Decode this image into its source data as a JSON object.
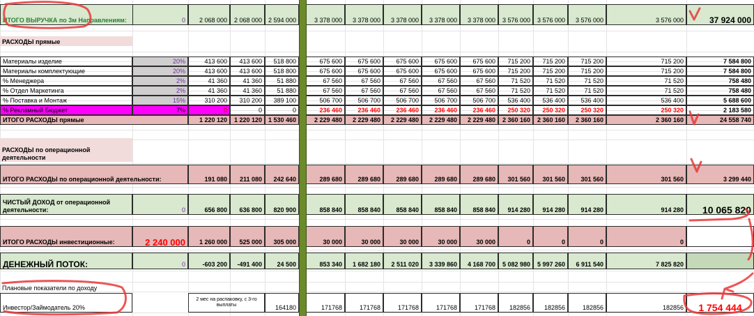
{
  "columns": 16,
  "revenue": {
    "label": "ИТОГО ВЫРУЧКА по 3м Направлениям:",
    "values": [
      "0",
      "2 068 000",
      "2 068 000",
      "2 594 000",
      "3 378 000",
      "3 378 000",
      "3 378 000",
      "3 378 000",
      "3 378 000",
      "3 576 000",
      "3 576 000",
      "3 576 000",
      "3 576 000"
    ],
    "total": "37 924 000"
  },
  "direct_header": "РАСХОДЫ прямые",
  "direct_rows": [
    {
      "label": "Материалы изделие",
      "pct": "20%",
      "values": [
        "413 600",
        "413 600",
        "518 800",
        "675 600",
        "675 600",
        "675 600",
        "675 600",
        "675 600",
        "715 200",
        "715 200",
        "715 200",
        "715 200"
      ],
      "total": "7 584 800"
    },
    {
      "label": "Материалы комплектующие",
      "pct": "20%",
      "values": [
        "413 600",
        "413 600",
        "518 800",
        "675 600",
        "675 600",
        "675 600",
        "675 600",
        "675 600",
        "715 200",
        "715 200",
        "715 200",
        "715 200"
      ],
      "total": "7 584 800"
    },
    {
      "label": "% Менеджера",
      "pct": "2%",
      "values": [
        "41 360",
        "41 360",
        "51 880",
        "67 560",
        "67 560",
        "67 560",
        "67 560",
        "67 560",
        "71 520",
        "71 520",
        "71 520",
        "71 520"
      ],
      "total": "758 480"
    },
    {
      "label": "% Отдел Маркетинга",
      "pct": "2%",
      "values": [
        "41 360",
        "41 360",
        "51 880",
        "67 560",
        "67 560",
        "67 560",
        "67 560",
        "67 560",
        "71 520",
        "71 520",
        "71 520",
        "71 520"
      ],
      "total": "758 480"
    },
    {
      "label": "% Поставка и Монтаж",
      "pct": "15%",
      "values": [
        "310 200",
        "310 200",
        "389 100",
        "506 700",
        "506 700",
        "506 700",
        "506 700",
        "506 700",
        "536 400",
        "536 400",
        "536 400",
        "536 400"
      ],
      "total": "5 688 600"
    },
    {
      "label": "% Рекламный Бюджет",
      "pct": "7%",
      "pre": "0",
      "values": [
        "0",
        "0",
        "236 460",
        "236 460",
        "236 460",
        "236 460",
        "236 460",
        "250 320",
        "250 320",
        "250 320",
        "250 320"
      ],
      "total": "2 183 580"
    }
  ],
  "direct_total": {
    "label": "ИТОГО РАСХОДЫ прямые",
    "values": [
      "1 220 120",
      "1 220 120",
      "1 530 460",
      "2 229 480",
      "2 229 480",
      "2 229 480",
      "2 229 480",
      "2 229 480",
      "2 360 160",
      "2 360 160",
      "2 360 160",
      "2 360 160"
    ],
    "total": "24 558 740"
  },
  "op_header": "РАСХОДЫ по операционной деятельности",
  "op_total": {
    "label": "ИТОГО РАСХОДЫ по операционной деятельности:",
    "values": [
      "191 080",
      "211 080",
      "242 640",
      "289 680",
      "289 680",
      "289 680",
      "289 680",
      "289 680",
      "301 560",
      "301 560",
      "301 560",
      "301 560"
    ],
    "total": "3 299 440"
  },
  "net_income": {
    "label": "ЧИСТЫЙ ДОХОД от операционной деятельности:",
    "first": "0",
    "values": [
      "656 800",
      "636 800",
      "820 900",
      "858 840",
      "858 840",
      "858 840",
      "858 840",
      "858 840",
      "914 280",
      "914 280",
      "914 280",
      "914 280"
    ],
    "total": "10 065 820"
  },
  "invest": {
    "label": "ИТОГО РАСХОДЫ инвестиционные:",
    "first": "2 240 000",
    "values": [
      "1 260 000",
      "525 000",
      "305 000",
      "30 000",
      "30 000",
      "30 000",
      "30 000",
      "30 000",
      "0",
      "0",
      "0",
      "0"
    ]
  },
  "cashflow": {
    "label": "ДЕНЕЖНЫЙ ПОТОК:",
    "first": "0",
    "values": [
      "-603 200",
      "-491 400",
      "24 500",
      "853 340",
      "1 682 180",
      "2 511 020",
      "3 339 860",
      "4 168 700",
      "5 082 980",
      "5 997 260",
      "6 911 540",
      "7 825 820"
    ]
  },
  "plan_label": "Плановые показатели по доходу",
  "investor": {
    "label": "Инвестор/Займодатель  20%",
    "note": "2 мес на распаковку, с 3-го выплаты",
    "v3": "164180",
    "sep": "0",
    "values": [
      "171768",
      "171768",
      "171768",
      "171768",
      "171768",
      "182856",
      "182856",
      "182856",
      "182856"
    ],
    "total": "1 754 444"
  },
  "colors": {
    "green": "#d8e9cf",
    "pink": "#e6b8b7",
    "light_pink": "#f2dcdb",
    "magenta": "#ff00ff",
    "olive": "#6b8a2a",
    "red": "#ff0000",
    "purple": "#7030a0",
    "annotation": "#e8393a"
  }
}
